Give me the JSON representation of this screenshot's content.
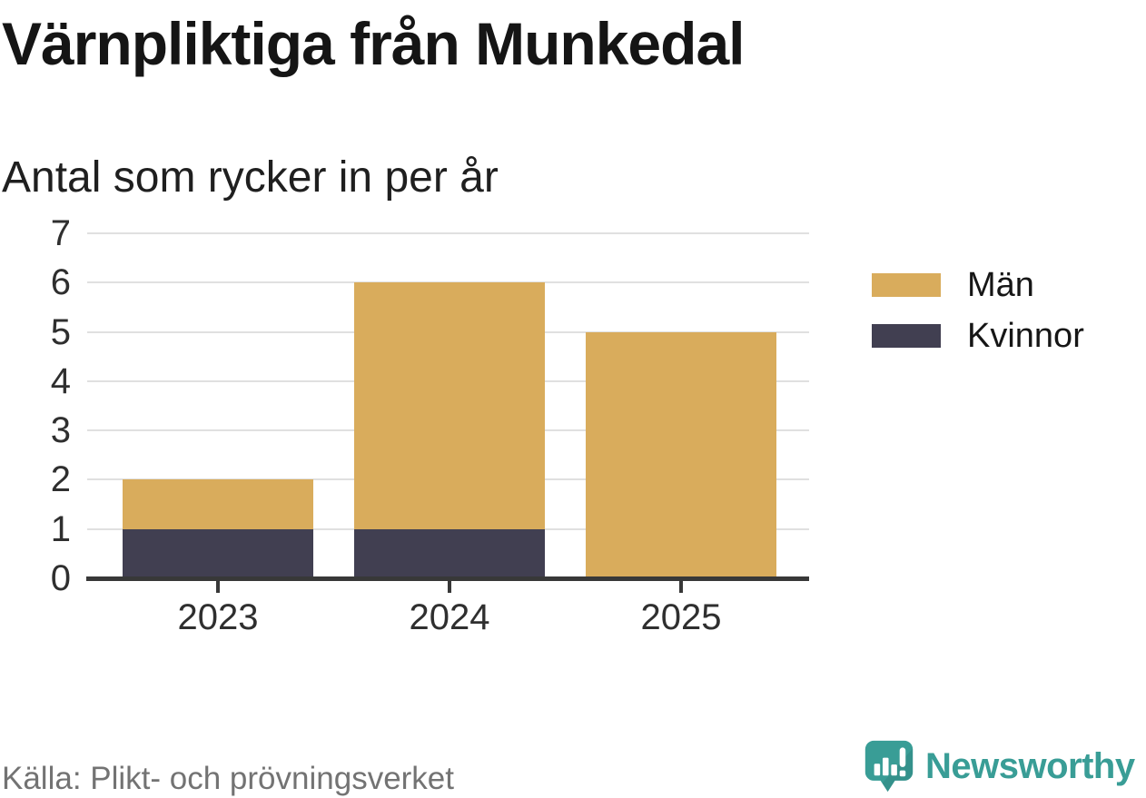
{
  "header": {
    "title": "Värnpliktiga från Munkedal",
    "subtitle": "Antal som rycker in per år"
  },
  "chart_data": {
    "type": "bar",
    "stacked": true,
    "title": "Värnpliktiga från Munkedal",
    "subtitle": "Antal som rycker in per år",
    "categories": [
      "2023",
      "2024",
      "2025"
    ],
    "series": [
      {
        "name": "Män",
        "color": "#d9ac5c",
        "values": [
          1,
          5,
          5
        ]
      },
      {
        "name": "Kvinnor",
        "color": "#413f51",
        "values": [
          1,
          1,
          0
        ]
      }
    ],
    "stack_order": [
      "Kvinnor",
      "Män"
    ],
    "totals": [
      2,
      6,
      5
    ],
    "xlabel": "",
    "ylabel": "",
    "ylim": [
      0,
      7
    ],
    "yticks": [
      0,
      1,
      2,
      3,
      4,
      5,
      6,
      7
    ],
    "grid": true,
    "legend_position": "right"
  },
  "legend": {
    "items": [
      {
        "label": "Män",
        "color": "#d9ac5c"
      },
      {
        "label": "Kvinnor",
        "color": "#413f51"
      }
    ]
  },
  "footer": {
    "source": "Källa: Plikt- och prövningsverket",
    "brand": "Newsworthy"
  },
  "colors": {
    "men": "#d9ac5c",
    "women": "#413f51",
    "gridline": "#e0e0e0",
    "axis": "#383838",
    "title_text": "#151515",
    "tick_text": "#2f2f2f",
    "source_text": "#737373",
    "brand_teal": "#399d96"
  }
}
